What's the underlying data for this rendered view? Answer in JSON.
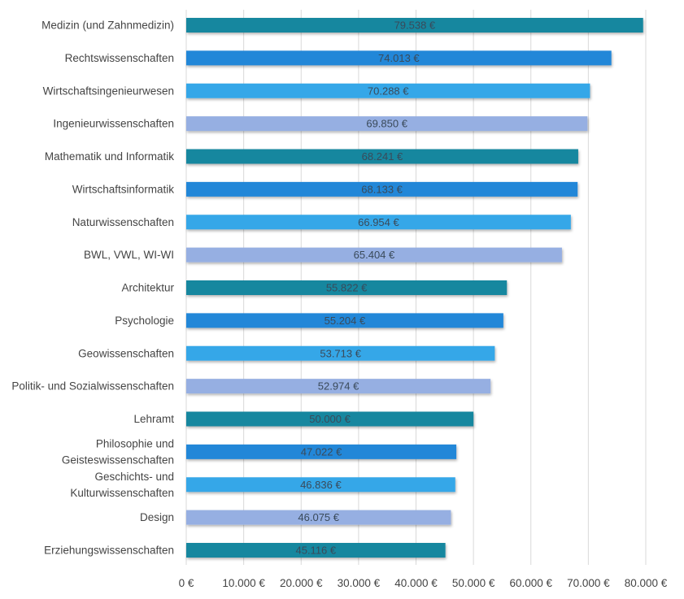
{
  "chart_data": {
    "type": "bar",
    "orientation": "horizontal",
    "categories": [
      "Medizin (und Zahnmedizin)",
      "Rechtswissenschaften",
      "Wirtschaftsingenieurwesen",
      "Ingenieurwissenschaften",
      "Mathematik und Informatik",
      "Wirtschaftsinformatik",
      "Naturwissenschaften",
      "BWL, VWL, WI-WI",
      "Architektur",
      "Psychologie",
      "Geowissenschaften",
      "Politik- und Sozialwissenschaften",
      "Lehramt",
      "Philosophie und Geisteswissenschaften",
      "Geschichts- und Kulturwissenschaften",
      "Design",
      "Erziehungswissenschaften"
    ],
    "category_lines": [
      [
        "Medizin (und Zahnmedizin)"
      ],
      [
        "Rechtswissenschaften"
      ],
      [
        "Wirtschaftsingenieurwesen"
      ],
      [
        "Ingenieurwissenschaften"
      ],
      [
        "Mathematik und Informatik"
      ],
      [
        "Wirtschaftsinformatik"
      ],
      [
        "Naturwissenschaften"
      ],
      [
        "BWL, VWL, WI-WI"
      ],
      [
        "Architektur"
      ],
      [
        "Psychologie"
      ],
      [
        "Geowissenschaften"
      ],
      [
        "Politik- und Sozialwissenschaften"
      ],
      [
        "Lehramt"
      ],
      [
        "Philosophie und",
        "Geisteswissenschaften"
      ],
      [
        "Geschichts- und",
        "Kulturwissenschaften"
      ],
      [
        "Design"
      ],
      [
        "Erziehungswissenschaften"
      ]
    ],
    "values": [
      79538,
      74013,
      70288,
      69850,
      68241,
      68133,
      66954,
      65404,
      55822,
      55204,
      53713,
      52974,
      50000,
      47022,
      46836,
      46075,
      45116
    ],
    "data_labels": [
      "79.538 €",
      "74.013 €",
      "70.288 €",
      "69.850 €",
      "68.241 €",
      "68.133 €",
      "66.954 €",
      "65.404 €",
      "55.822 €",
      "55.204 €",
      "53.713 €",
      "52.974 €",
      "50.000 €",
      "47.022 €",
      "46.836 €",
      "46.075 €",
      "45.116 €"
    ],
    "colors": [
      "#15879f",
      "#2087d8",
      "#36a7e8",
      "#96afe2"
    ],
    "xlim": [
      0,
      80000
    ],
    "xticks": [
      0,
      10000,
      20000,
      30000,
      40000,
      50000,
      60000,
      70000,
      80000
    ],
    "xtick_labels": [
      "0 €",
      "10.000 €",
      "20.000 €",
      "30.000 €",
      "40.000 €",
      "50.000 €",
      "60.000 €",
      "70.000 €",
      "80.000 €"
    ],
    "grid": "vertical",
    "title": "",
    "xlabel": "",
    "ylabel": ""
  }
}
